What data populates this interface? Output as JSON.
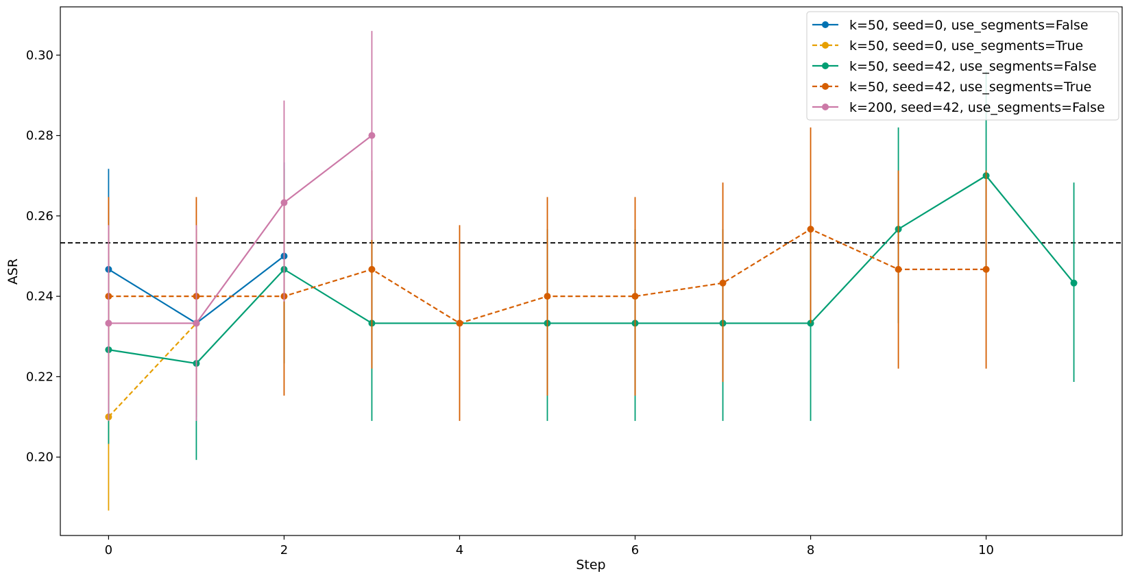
{
  "chart_data": {
    "type": "line",
    "xlabel": "Step",
    "ylabel": "ASR",
    "xlim": [
      -0.55,
      11.55
    ],
    "ylim": [
      0.1805,
      0.312
    ],
    "xticks": [
      0,
      2,
      4,
      6,
      8,
      10
    ],
    "yticks": [
      0.2,
      0.22,
      0.24,
      0.26,
      0.28,
      0.3
    ],
    "ytick_labels": [
      "0.20",
      "0.22",
      "0.24",
      "0.26",
      "0.28",
      "0.30"
    ],
    "grid": false,
    "legend_position": "top-right",
    "reference_line": {
      "y": 0.2533,
      "style": "dashed",
      "color": "#000000"
    },
    "series": [
      {
        "name": "k=50, seed=0, use_segments=False",
        "color": "#0072B2",
        "dashed": false,
        "x": [
          0,
          1,
          2
        ],
        "y": [
          0.2467,
          0.2333,
          0.25
        ],
        "err_low": [
          0.2267,
          0.21,
          0.2267
        ],
        "err_high": [
          0.2717,
          0.2567,
          0.2733
        ]
      },
      {
        "name": "k=50, seed=0, use_segments=True",
        "color": "#E69F00",
        "dashed": true,
        "x": [
          0,
          1
        ],
        "y": [
          0.21,
          0.2333
        ],
        "err_low": [
          0.1867,
          0.21
        ],
        "err_high": [
          0.2333,
          0.2567
        ]
      },
      {
        "name": "k=50, seed=42, use_segments=False",
        "color": "#009E73",
        "dashed": false,
        "x": [
          0,
          1,
          2,
          3,
          5,
          6,
          7,
          8,
          9,
          10,
          11
        ],
        "y": [
          0.2267,
          0.2233,
          0.2467,
          0.2333,
          0.2333,
          0.2333,
          0.2333,
          0.2333,
          0.2567,
          0.27,
          0.2433
        ],
        "err_low": [
          0.2033,
          0.1993,
          0.2233,
          0.209,
          0.209,
          0.209,
          0.209,
          0.209,
          0.2333,
          0.2467,
          0.2187
        ],
        "err_high": [
          0.25,
          0.2467,
          0.2717,
          0.2567,
          0.2567,
          0.2567,
          0.2567,
          0.2567,
          0.282,
          0.296,
          0.2683
        ]
      },
      {
        "name": "k=50, seed=42, use_segments=True",
        "color": "#D55E00",
        "dashed": true,
        "x": [
          0,
          1,
          2,
          3,
          4,
          5,
          6,
          7,
          8,
          9,
          10
        ],
        "y": [
          0.24,
          0.24,
          0.24,
          0.2467,
          0.2333,
          0.24,
          0.24,
          0.2433,
          0.2567,
          0.2467,
          0.2467
        ],
        "err_low": [
          0.2153,
          0.2153,
          0.2153,
          0.222,
          0.209,
          0.2153,
          0.2153,
          0.2187,
          0.2333,
          0.222,
          0.222
        ],
        "err_high": [
          0.2647,
          0.2647,
          0.2647,
          0.2713,
          0.2577,
          0.2647,
          0.2647,
          0.2683,
          0.282,
          0.2713,
          0.2713
        ]
      },
      {
        "name": "k=200, seed=42, use_segments=False",
        "color": "#CC79A7",
        "dashed": false,
        "x": [
          0,
          1,
          2,
          3
        ],
        "y": [
          0.2333,
          0.2333,
          0.2633,
          0.28
        ],
        "err_low": [
          0.209,
          0.209,
          0.2387,
          0.254
        ],
        "err_high": [
          0.2577,
          0.2577,
          0.2887,
          0.306
        ]
      }
    ]
  }
}
